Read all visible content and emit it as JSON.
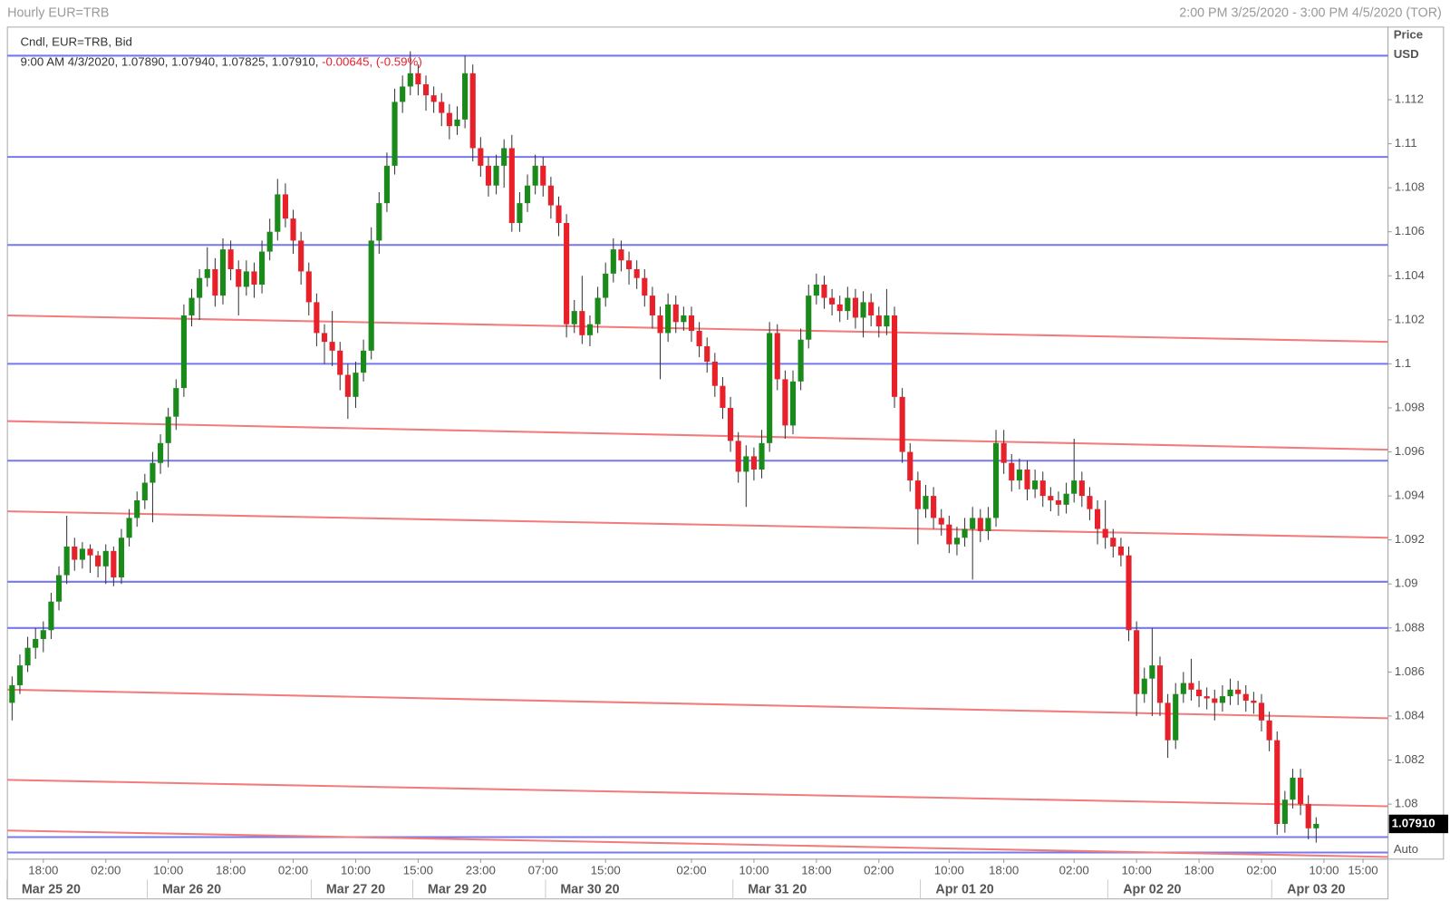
{
  "chart_data": {
    "type": "candlestick",
    "title": "Hourly EUR=TRB",
    "date_range": "2:00 PM 3/25/2020 - 3:00 PM 4/5/2020 (TOR)",
    "legend": "Cndl, EUR=TRB, Bid",
    "info": "9:00 AM 4/3/2020, 1.07890, 1.07940, 1.07825, 1.07910,",
    "change": "-0.00645, (-0.59%)",
    "axis_title": "Price",
    "axis_unit": "USD",
    "scale_mode": "Auto",
    "up_color": "#1a8a1a",
    "down_color": "#e8202a",
    "ylim": [
      1.0775,
      1.1153
    ],
    "yticks": [
      1.08,
      1.082,
      1.084,
      1.086,
      1.088,
      1.09,
      1.092,
      1.094,
      1.096,
      1.098,
      1.1,
      1.102,
      1.104,
      1.106,
      1.108,
      1.11,
      1.112
    ],
    "xlim": [
      -0.6,
      176.2
    ],
    "xticks": [
      {
        "value": 4,
        "label": "18:00"
      },
      {
        "value": 12,
        "label": "02:00"
      },
      {
        "value": 20,
        "label": "10:00"
      },
      {
        "value": 28,
        "label": "18:00"
      },
      {
        "value": 36,
        "label": "02:00"
      },
      {
        "value": 44,
        "label": "10:00"
      },
      {
        "value": 52,
        "label": "15:00"
      },
      {
        "value": 60,
        "label": "23:00"
      },
      {
        "value": 68,
        "label": "07:00"
      },
      {
        "value": 76,
        "label": "15:00"
      },
      {
        "value": 87,
        "label": "02:00"
      },
      {
        "value": 95,
        "label": "10:00"
      },
      {
        "value": 103,
        "label": "18:00"
      },
      {
        "value": 111,
        "label": "02:00"
      },
      {
        "value": 120,
        "label": "10:00"
      },
      {
        "value": 127,
        "label": "18:00"
      },
      {
        "value": 136,
        "label": "02:00"
      },
      {
        "value": 144,
        "label": "10:00"
      },
      {
        "value": 152,
        "label": "18:00"
      },
      {
        "value": 160,
        "label": "02:00"
      },
      {
        "value": 168,
        "label": "10:00"
      },
      {
        "value": 173,
        "label": "15:00"
      }
    ],
    "date_ticks": [
      {
        "value": 5,
        "label": "Mar 25 20"
      },
      {
        "value": 23,
        "label": "Mar 26 20"
      },
      {
        "value": 44,
        "label": "Mar 27 20"
      },
      {
        "value": 57,
        "label": "Mar 29 20"
      },
      {
        "value": 74,
        "label": "Mar 30 20"
      },
      {
        "value": 98,
        "label": "Mar 31 20"
      },
      {
        "value": 122,
        "label": "Apr 01 20"
      },
      {
        "value": 146,
        "label": "Apr 02 20"
      },
      {
        "value": 167,
        "label": "Apr 03 20"
      }
    ],
    "last_price": {
      "value": 1.0791,
      "label": "1.07910"
    },
    "horizontal_lines": {
      "color": "#7878ee",
      "values": [
        1.114,
        1.1094,
        1.1054,
        1.1,
        1.0956,
        1.0901,
        1.088,
        1.0785,
        1.0778
      ]
    },
    "trend_lines": {
      "color": "#f27c7c",
      "lines": [
        [
          1.1022,
          1.101
        ],
        [
          1.0974,
          1.0961
        ],
        [
          1.0933,
          1.0921
        ],
        [
          1.0852,
          1.0839
        ],
        [
          1.0811,
          1.0799
        ],
        [
          1.0788,
          1.0776
        ]
      ]
    },
    "candles": [
      [
        1.0846,
        1.0858,
        1.0838,
        1.0854
      ],
      [
        1.0854,
        1.0868,
        1.085,
        1.0863
      ],
      [
        1.0863,
        1.0876,
        1.086,
        1.0871
      ],
      [
        1.0871,
        1.088,
        1.0866,
        1.0875
      ],
      [
        1.0875,
        1.0883,
        1.0869,
        1.0879
      ],
      [
        1.0879,
        1.0896,
        1.0875,
        1.0892
      ],
      [
        1.0892,
        1.0908,
        1.0888,
        1.0904
      ],
      [
        1.0904,
        1.0931,
        1.09,
        1.0917
      ],
      [
        1.0917,
        1.0921,
        1.0906,
        1.0911
      ],
      [
        1.0911,
        1.0919,
        1.0907,
        1.0916
      ],
      [
        1.0916,
        1.0918,
        1.0905,
        1.0913
      ],
      [
        1.0913,
        1.0915,
        1.0903,
        1.0908
      ],
      [
        1.0908,
        1.0918,
        1.09,
        1.0915
      ],
      [
        1.0915,
        1.0917,
        1.0899,
        1.0903
      ],
      [
        1.0903,
        1.0925,
        1.09,
        1.0921
      ],
      [
        1.0921,
        1.0934,
        1.0917,
        1.093
      ],
      [
        1.093,
        1.0942,
        1.0926,
        1.0938
      ],
      [
        1.0938,
        1.095,
        1.0934,
        1.0946
      ],
      [
        1.0946,
        1.096,
        1.0928,
        1.0955
      ],
      [
        1.0955,
        1.0968,
        1.095,
        1.0964
      ],
      [
        1.0964,
        1.098,
        1.0953,
        1.0976
      ],
      [
        1.0976,
        1.0993,
        1.097,
        1.0989
      ],
      [
        1.0989,
        1.1027,
        1.0985,
        1.1022
      ],
      [
        1.1022,
        1.1034,
        1.1017,
        1.103
      ],
      [
        1.103,
        1.1043,
        1.102,
        1.1039
      ],
      [
        1.1039,
        1.1053,
        1.1035,
        1.1043
      ],
      [
        1.1043,
        1.1048,
        1.1026,
        1.1031
      ],
      [
        1.1031,
        1.1057,
        1.1027,
        1.1052
      ],
      [
        1.1052,
        1.1056,
        1.1038,
        1.1043
      ],
      [
        1.1043,
        1.1047,
        1.1022,
        1.1035
      ],
      [
        1.1035,
        1.1047,
        1.1031,
        1.1042
      ],
      [
        1.1042,
        1.1046,
        1.103,
        1.1036
      ],
      [
        1.1036,
        1.1056,
        1.1032,
        1.1051
      ],
      [
        1.1051,
        1.1066,
        1.1047,
        1.106
      ],
      [
        1.106,
        1.1084,
        1.1056,
        1.1077
      ],
      [
        1.1077,
        1.1082,
        1.1062,
        1.1066
      ],
      [
        1.1066,
        1.107,
        1.105,
        1.1056
      ],
      [
        1.1056,
        1.106,
        1.1036,
        1.1042
      ],
      [
        1.1042,
        1.1046,
        1.1022,
        1.1028
      ],
      [
        1.1028,
        1.1032,
        1.1008,
        1.1014
      ],
      [
        1.1014,
        1.1018,
        1.1,
        1.101
      ],
      [
        1.101,
        1.1024,
        1.0999,
        1.1006
      ],
      [
        1.1006,
        1.101,
        1.0988,
        1.0995
      ],
      [
        1.0995,
        1.1,
        1.0975,
        1.0985
      ],
      [
        1.0985,
        1.1001,
        1.098,
        1.0996
      ],
      [
        1.0996,
        1.1011,
        1.0992,
        1.1006
      ],
      [
        1.1006,
        1.1062,
        1.1002,
        1.1056
      ],
      [
        1.1056,
        1.1078,
        1.105,
        1.1073
      ],
      [
        1.1073,
        1.1096,
        1.1069,
        1.109
      ],
      [
        1.109,
        1.1125,
        1.1086,
        1.1119
      ],
      [
        1.1119,
        1.1131,
        1.1114,
        1.1126
      ],
      [
        1.1126,
        1.1142,
        1.1122,
        1.1132
      ],
      [
        1.1132,
        1.1136,
        1.1122,
        1.1127
      ],
      [
        1.1127,
        1.1131,
        1.1115,
        1.1122
      ],
      [
        1.1122,
        1.1126,
        1.1114,
        1.1119
      ],
      [
        1.1119,
        1.1123,
        1.1108,
        1.1114
      ],
      [
        1.1114,
        1.1118,
        1.1102,
        1.1108
      ],
      [
        1.1108,
        1.1117,
        1.1104,
        1.1111
      ],
      [
        1.1111,
        1.114,
        1.1107,
        1.1132
      ],
      [
        1.1132,
        1.1136,
        1.1092,
        1.1098
      ],
      [
        1.1098,
        1.1103,
        1.1085,
        1.109
      ],
      [
        1.109,
        1.1094,
        1.1076,
        1.1081
      ],
      [
        1.1081,
        1.1095,
        1.1077,
        1.109
      ],
      [
        1.109,
        1.1102,
        1.108,
        1.1098
      ],
      [
        1.1098,
        1.1104,
        1.106,
        1.1064
      ],
      [
        1.1064,
        1.1078,
        1.106,
        1.1073
      ],
      [
        1.1073,
        1.1086,
        1.1069,
        1.1081
      ],
      [
        1.1081,
        1.1095,
        1.1077,
        1.109
      ],
      [
        1.109,
        1.1094,
        1.1076,
        1.1081
      ],
      [
        1.1081,
        1.1085,
        1.1066,
        1.1072
      ],
      [
        1.1072,
        1.1076,
        1.1058,
        1.1064
      ],
      [
        1.1064,
        1.1068,
        1.1012,
        1.1018
      ],
      [
        1.1018,
        1.1029,
        1.1014,
        1.1024
      ],
      [
        1.1024,
        1.104,
        1.1009,
        1.1013
      ],
      [
        1.1013,
        1.1022,
        1.1008,
        1.1018
      ],
      [
        1.1018,
        1.1035,
        1.1014,
        1.103
      ],
      [
        1.103,
        1.1046,
        1.1026,
        1.1041
      ],
      [
        1.1041,
        1.1057,
        1.1037,
        1.1052
      ],
      [
        1.1052,
        1.1056,
        1.1042,
        1.1047
      ],
      [
        1.1047,
        1.1051,
        1.1036,
        1.1043
      ],
      [
        1.1043,
        1.1047,
        1.1034,
        1.1039
      ],
      [
        1.1039,
        1.1043,
        1.1026,
        1.1031
      ],
      [
        1.1031,
        1.1035,
        1.1016,
        1.1022
      ],
      [
        1.1022,
        1.1026,
        1.0993,
        1.1014
      ],
      [
        1.1014,
        1.1032,
        1.101,
        1.1027
      ],
      [
        1.1027,
        1.1031,
        1.1014,
        1.1019
      ],
      [
        1.1019,
        1.1026,
        1.1015,
        1.1022
      ],
      [
        1.1022,
        1.1026,
        1.101,
        1.1015
      ],
      [
        1.1015,
        1.1019,
        1.1003,
        1.1008
      ],
      [
        1.1008,
        1.1012,
        1.0996,
        1.1001
      ],
      [
        1.1001,
        1.1005,
        1.0985,
        1.099
      ],
      [
        1.099,
        1.0994,
        1.0975,
        1.098
      ],
      [
        1.098,
        1.0985,
        1.096,
        1.0965
      ],
      [
        1.0965,
        1.0969,
        1.0946,
        1.0951
      ],
      [
        1.0951,
        1.0963,
        1.0935,
        1.0958
      ],
      [
        1.0958,
        1.0962,
        1.0947,
        1.0952
      ],
      [
        1.0952,
        1.097,
        1.0948,
        1.0964
      ],
      [
        1.0964,
        1.1019,
        1.096,
        1.1014
      ],
      [
        1.1014,
        1.1018,
        1.0988,
        1.0993
      ],
      [
        1.0993,
        1.0997,
        1.0966,
        1.0972
      ],
      [
        1.0972,
        1.0997,
        1.0968,
        1.0992
      ],
      [
        1.0992,
        1.1016,
        1.0988,
        1.1011
      ],
      [
        1.1011,
        1.1036,
        1.1007,
        1.1031
      ],
      [
        1.1031,
        1.1041,
        1.1027,
        1.1036
      ],
      [
        1.1036,
        1.104,
        1.1025,
        1.103
      ],
      [
        1.103,
        1.1034,
        1.1022,
        1.1027
      ],
      [
        1.1027,
        1.1031,
        1.1019,
        1.1024
      ],
      [
        1.1024,
        1.1035,
        1.102,
        1.103
      ],
      [
        1.103,
        1.1034,
        1.1016,
        1.1021
      ],
      [
        1.1021,
        1.1033,
        1.1012,
        1.1028
      ],
      [
        1.1028,
        1.1032,
        1.1017,
        1.1022
      ],
      [
        1.1022,
        1.1026,
        1.1012,
        1.1017
      ],
      [
        1.1017,
        1.1034,
        1.1013,
        1.1022
      ],
      [
        1.1022,
        1.1026,
        1.098,
        1.0985
      ],
      [
        1.0985,
        1.0989,
        1.0955,
        1.096
      ],
      [
        1.096,
        1.0964,
        1.0942,
        1.0947
      ],
      [
        1.0947,
        1.0951,
        1.0918,
        1.0934
      ],
      [
        1.0934,
        1.0945,
        1.093,
        1.094
      ],
      [
        1.094,
        1.0944,
        1.0925,
        1.093
      ],
      [
        1.093,
        1.0934,
        1.0922,
        1.0927
      ],
      [
        1.0927,
        1.0931,
        1.0914,
        1.0918
      ],
      [
        1.0918,
        1.0926,
        1.0913,
        1.0921
      ],
      [
        1.0921,
        1.093,
        1.0917,
        1.0925
      ],
      [
        1.0925,
        1.0935,
        1.0902,
        1.093
      ],
      [
        1.093,
        1.0934,
        1.0919,
        1.0924
      ],
      [
        1.0924,
        1.0935,
        1.092,
        1.093
      ],
      [
        1.093,
        1.097,
        1.0926,
        1.0964
      ],
      [
        1.0964,
        1.097,
        1.095,
        1.0955
      ],
      [
        1.0955,
        1.0959,
        1.0942,
        1.0947
      ],
      [
        1.0947,
        1.0957,
        1.0943,
        1.0952
      ],
      [
        1.0952,
        1.0956,
        1.0938,
        1.0943
      ],
      [
        1.0943,
        1.0952,
        1.0939,
        1.0947
      ],
      [
        1.0947,
        1.0951,
        1.0935,
        1.094
      ],
      [
        1.094,
        1.0944,
        1.0933,
        1.0938
      ],
      [
        1.0938,
        1.0942,
        1.0931,
        1.0936
      ],
      [
        1.0936,
        1.0946,
        1.0932,
        1.0941
      ],
      [
        1.0941,
        1.0966,
        1.0937,
        1.0947
      ],
      [
        1.0947,
        1.0951,
        1.0935,
        1.094
      ],
      [
        1.094,
        1.0944,
        1.0929,
        1.0934
      ],
      [
        1.0934,
        1.0938,
        1.0918,
        1.0925
      ],
      [
        1.0925,
        1.0938,
        1.0916,
        1.0921
      ],
      [
        1.0921,
        1.0925,
        1.0912,
        1.0917
      ],
      [
        1.0917,
        1.0921,
        1.0908,
        1.0913
      ],
      [
        1.0913,
        1.0917,
        1.0874,
        1.0879
      ],
      [
        1.0879,
        1.0883,
        1.084,
        1.085
      ],
      [
        1.085,
        1.0862,
        1.0846,
        1.0857
      ],
      [
        1.0857,
        1.088,
        1.084,
        1.0863
      ],
      [
        1.0863,
        1.0867,
        1.084,
        1.0846
      ],
      [
        1.0846,
        1.085,
        1.0821,
        1.0829
      ],
      [
        1.0829,
        1.0855,
        1.0825,
        1.085
      ],
      [
        1.085,
        1.086,
        1.0846,
        1.0855
      ],
      [
        1.0855,
        1.0866,
        1.0847,
        1.0852
      ],
      [
        1.0852,
        1.0856,
        1.0844,
        1.0849
      ],
      [
        1.0849,
        1.0853,
        1.0843,
        1.0848
      ],
      [
        1.0848,
        1.0852,
        1.0838,
        1.0846
      ],
      [
        1.0846,
        1.0854,
        1.0842,
        1.0849
      ],
      [
        1.0849,
        1.0857,
        1.0845,
        1.0852
      ],
      [
        1.0852,
        1.0856,
        1.0845,
        1.085
      ],
      [
        1.085,
        1.0854,
        1.0842,
        1.0847
      ],
      [
        1.0847,
        1.0851,
        1.0841,
        1.0846
      ],
      [
        1.0846,
        1.085,
        1.0833,
        1.0838
      ],
      [
        1.0838,
        1.0842,
        1.0824,
        1.0829
      ],
      [
        1.0829,
        1.0833,
        1.0786,
        1.0791
      ],
      [
        1.0791,
        1.0806,
        1.0787,
        1.0802
      ],
      [
        1.0802,
        1.0816,
        1.0798,
        1.0812
      ],
      [
        1.0812,
        1.0816,
        1.0795,
        1.08
      ],
      [
        1.08,
        1.0804,
        1.0784,
        1.0789
      ],
      [
        1.0789,
        1.0794,
        1.07825,
        1.0791
      ]
    ]
  }
}
